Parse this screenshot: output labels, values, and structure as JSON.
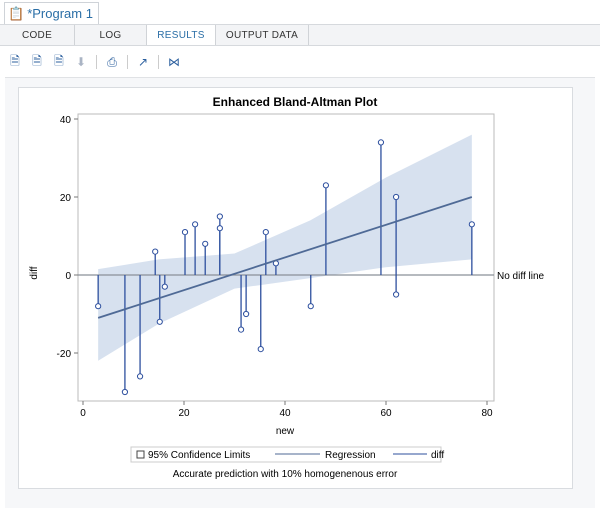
{
  "program_tab": {
    "label": "*Program 1",
    "icon": "program-icon"
  },
  "subtabs": [
    {
      "label": "CODE"
    },
    {
      "label": "LOG"
    },
    {
      "label": "RESULTS",
      "active": true
    },
    {
      "label": "OUTPUT DATA"
    }
  ],
  "toolbar": [
    {
      "icon": "html-download-icon"
    },
    {
      "icon": "pdf-download-icon"
    },
    {
      "icon": "rtf-download-icon"
    },
    {
      "icon": "download-icon",
      "disabled": true
    },
    {
      "icon": "print-icon"
    },
    {
      "icon": "open-new-window-icon"
    },
    {
      "icon": "collapse-icon"
    }
  ],
  "colors": {
    "accent": "#2a6ea6",
    "band": "#d7e1ef",
    "line": "#4f6a96",
    "needle": "#2d4f9e",
    "refline": "#8a9099"
  },
  "chart_data": {
    "type": "scatter",
    "title": "Enhanced Bland-Altman Plot",
    "xlabel": "new",
    "ylabel": "diff",
    "xlim": [
      -2,
      82
    ],
    "ylim": [
      -32,
      41
    ],
    "xticks": [
      "0",
      "20",
      "40",
      "60",
      "80"
    ],
    "yticks": [
      "-20",
      "0",
      "20",
      "40"
    ],
    "reference_line": {
      "y": 0,
      "label": "No diff line"
    },
    "points": [
      [
        3,
        -8
      ],
      [
        8.3,
        -30
      ],
      [
        11.3,
        -26
      ],
      [
        14.3,
        6
      ],
      [
        15.2,
        -12
      ],
      [
        16.2,
        -3
      ],
      [
        20.2,
        11
      ],
      [
        22.2,
        13
      ],
      [
        24.2,
        8
      ],
      [
        27.1,
        15
      ],
      [
        27.1,
        12
      ],
      [
        31.3,
        -14
      ],
      [
        32.3,
        -10
      ],
      [
        35.2,
        -19
      ],
      [
        36.2,
        11
      ],
      [
        38.2,
        3
      ],
      [
        45.1,
        -8
      ],
      [
        48.1,
        23
      ],
      [
        59,
        34
      ],
      [
        62,
        20
      ],
      [
        62,
        -5
      ],
      [
        77,
        13
      ]
    ],
    "regression": [
      [
        3,
        -11
      ],
      [
        77,
        20
      ]
    ],
    "confidence_band": {
      "x": [
        3,
        15,
        30,
        45,
        60,
        77
      ],
      "lower": [
        -22,
        -12.5,
        -3.5,
        -0.8,
        2,
        4
      ],
      "upper": [
        1.5,
        4,
        5.5,
        14,
        25,
        36
      ]
    },
    "legend": {
      "placement": "bottom",
      "items": [
        "95% Confidence Limits",
        "Regression",
        "diff"
      ]
    },
    "footnote": "Accurate prediction with 10% homogenenous error"
  }
}
